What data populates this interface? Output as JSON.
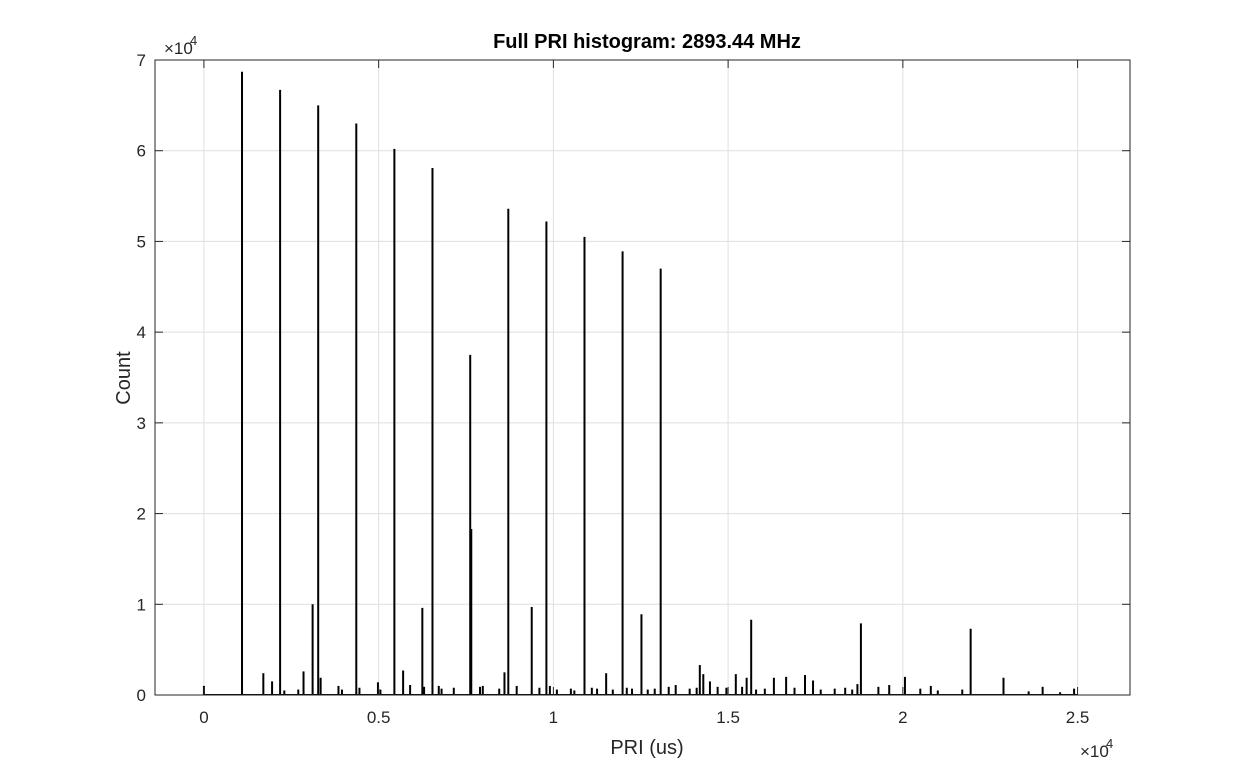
{
  "chart_data": {
    "type": "bar",
    "style": "stem-histogram",
    "title": "Full PRI histogram: 2893.44 MHz",
    "xlabel": "PRI (us)",
    "ylabel": "Count",
    "x_multiplier_label": "×10",
    "x_multiplier_exp": "4",
    "y_multiplier_label": "×10",
    "y_multiplier_exp": "4",
    "xlim": [
      -1400,
      26500
    ],
    "ylim": [
      0,
      70000
    ],
    "x_ticks": [
      0,
      5000,
      10000,
      15000,
      20000,
      25000
    ],
    "x_tick_labels": [
      "0",
      "0.5",
      "1",
      "1.5",
      "2",
      "2.5"
    ],
    "y_ticks": [
      0,
      10000,
      20000,
      30000,
      40000,
      50000,
      60000,
      70000
    ],
    "y_tick_labels": [
      "0",
      "1",
      "2",
      "3",
      "4",
      "5",
      "6",
      "7"
    ],
    "grid": true,
    "legend": "none",
    "colors": {
      "bars": "#000000",
      "grid": "#dfdfdf",
      "axes": "#262626",
      "background": "#ffffff"
    },
    "series": [
      {
        "x": [
          0,
          1090,
          2180,
          3270,
          4360,
          5450,
          6540,
          7620,
          7650,
          8710,
          9800,
          10890,
          11980,
          13070,
          3110,
          6250,
          9380,
          12520,
          15660,
          18800,
          21940,
          1700,
          1950,
          2850,
          3340,
          4450,
          5700,
          7980,
          8600,
          11510,
          14190,
          14290,
          14480,
          15220,
          15530,
          16310,
          16660,
          17200,
          17430,
          18700,
          19610,
          20060,
          20800,
          22880,
          24000,
          2300,
          2700,
          3850,
          3950,
          4980,
          5050,
          5900,
          6300,
          6720,
          6800,
          7150,
          7900,
          8450,
          8950,
          9600,
          9900,
          10100,
          10500,
          10600,
          11100,
          11250,
          11700,
          12100,
          12250,
          12700,
          12900,
          13300,
          13500,
          13900,
          14100,
          14700,
          14950,
          15400,
          15800,
          16050,
          16900,
          17650,
          18050,
          18350,
          18550,
          19300,
          20500,
          21000,
          21700,
          23600,
          24500,
          24900
        ],
        "values": [
          1000,
          68700,
          66700,
          65000,
          63000,
          60200,
          58100,
          37500,
          18300,
          53600,
          52200,
          50500,
          48900,
          47000,
          10000,
          9600,
          9700,
          8900,
          8300,
          7900,
          7300,
          2400,
          1500,
          2600,
          1900,
          800,
          2700,
          1000,
          2500,
          2400,
          3300,
          2300,
          1500,
          2300,
          1900,
          1900,
          2000,
          2200,
          1600,
          1200,
          1100,
          2000,
          1000,
          1900,
          900,
          500,
          600,
          1000,
          600,
          1400,
          600,
          1100,
          900,
          1000,
          700,
          800,
          900,
          700,
          1000,
          800,
          1000,
          600,
          700,
          500,
          800,
          700,
          600,
          800,
          700,
          600,
          700,
          900,
          1100,
          700,
          800,
          900,
          800,
          900,
          600,
          700,
          800,
          600,
          700,
          800,
          600,
          900,
          700,
          500,
          600,
          400,
          300,
          700
        ]
      }
    ]
  }
}
